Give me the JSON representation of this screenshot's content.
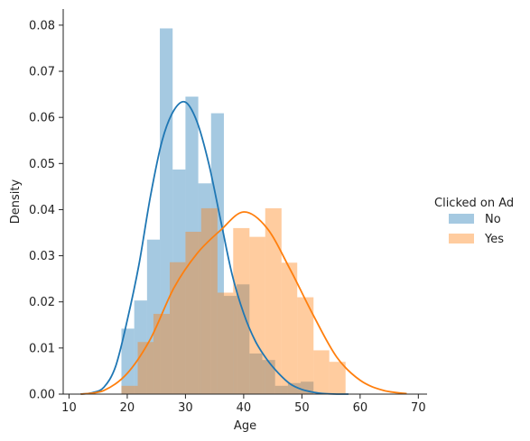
{
  "chart_data": {
    "type": "histogram",
    "xlabel": "Age",
    "ylabel": "Density",
    "xlim": [
      9,
      71.5
    ],
    "ylim": [
      0,
      0.0835
    ],
    "x_ticks": [
      10,
      20,
      30,
      40,
      50,
      60,
      70
    ],
    "y_ticks": [
      0.0,
      0.01,
      0.02,
      0.03,
      0.04,
      0.05,
      0.06,
      0.07,
      0.08
    ],
    "y_tick_labels": [
      "0.00",
      "0.01",
      "0.02",
      "0.03",
      "0.04",
      "0.05",
      "0.06",
      "0.07",
      "0.08"
    ],
    "legend": {
      "title": "Clicked on Ad",
      "placement": "right"
    },
    "series": [
      {
        "name": "No",
        "color": "#1f77b4",
        "bin_edges": [
          19,
          21.2,
          23.4,
          25.6,
          27.8,
          30.0,
          32.2,
          34.4,
          36.6,
          38.8,
          41.0,
          43.2,
          45.4,
          47.6,
          49.8,
          52.0,
          54.2,
          56.4,
          58.6
        ],
        "density": [
          0.0142,
          0.0203,
          0.0335,
          0.0793,
          0.0487,
          0.0645,
          0.0457,
          0.0609,
          0.0213,
          0.0238,
          0.0088,
          0.0074,
          0.0018,
          0.0024,
          0.0027,
          0.0,
          0.0,
          0.0
        ],
        "kde_x": [
          12,
          14,
          16,
          18,
          20,
          22,
          24,
          26,
          28,
          30,
          32,
          34,
          36,
          38,
          40,
          42,
          44,
          46,
          48,
          50,
          52,
          54,
          56,
          58
        ],
        "kde_y": [
          0.0,
          0.0003,
          0.0015,
          0.006,
          0.016,
          0.028,
          0.043,
          0.055,
          0.0615,
          0.0633,
          0.059,
          0.05,
          0.038,
          0.026,
          0.0175,
          0.0115,
          0.0075,
          0.0045,
          0.0022,
          0.001,
          0.0004,
          0.0001,
          0.0,
          0.0
        ]
      },
      {
        "name": "Yes",
        "color": "#ff7f0e",
        "bin_edges": [
          19,
          21.8,
          24.5,
          27.3,
          30.0,
          32.7,
          35.5,
          38.2,
          41.0,
          43.7,
          46.5,
          49.2,
          52.0,
          54.7,
          57.5,
          60.2,
          63.0
        ],
        "density": [
          0.0018,
          0.0113,
          0.0174,
          0.0286,
          0.0352,
          0.0403,
          0.022,
          0.036,
          0.0341,
          0.0403,
          0.0285,
          0.021,
          0.0095,
          0.007,
          0.0,
          0.0
        ],
        "kde_x": [
          12,
          16,
          20,
          24,
          28,
          32,
          36,
          40,
          44,
          48,
          52,
          56,
          60,
          64,
          68
        ],
        "kde_y": [
          0.0,
          0.0008,
          0.0045,
          0.012,
          0.023,
          0.0305,
          0.0355,
          0.0395,
          0.036,
          0.027,
          0.017,
          0.008,
          0.003,
          0.0008,
          0.0001
        ]
      }
    ]
  }
}
